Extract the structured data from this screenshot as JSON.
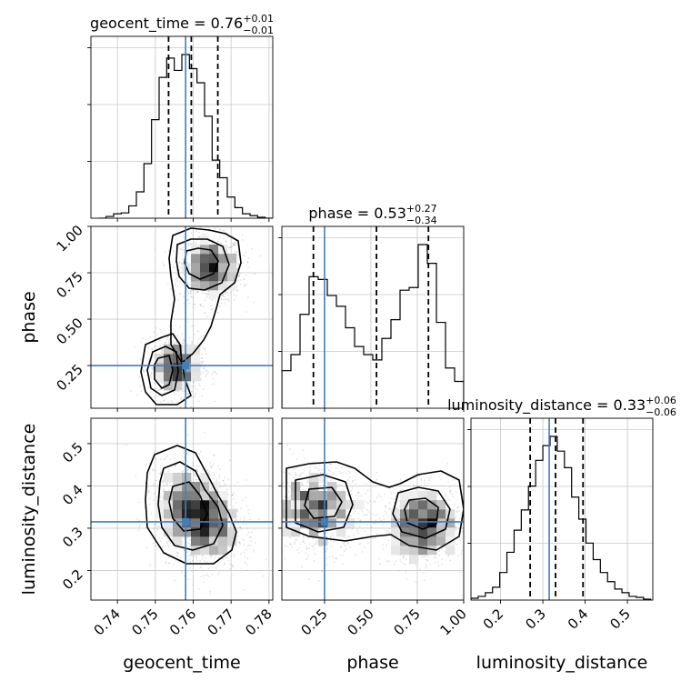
{
  "colors": {
    "truth": "#3f7fbf",
    "histogram": "#000000",
    "contour": "#000000",
    "grid": "#c8c8c8",
    "scatter": "#9a9a9a"
  },
  "chart_data": {
    "type": "corner",
    "parameters": [
      "geocent_time",
      "phase",
      "luminosity_distance"
    ],
    "truths": {
      "geocent_time": 0.758,
      "phase": 0.25,
      "luminosity_distance": 0.315
    },
    "ranges": {
      "geocent_time": [
        0.733,
        0.781
      ],
      "phase": [
        0.02,
        1.0
      ],
      "luminosity_distance": [
        0.13,
        0.56
      ]
    },
    "ticks": {
      "geocent_time": [
        "0.74",
        "0.75",
        "0.76",
        "0.77",
        "0.78"
      ],
      "phase": [
        "0.25",
        "0.50",
        "0.75",
        "1.00"
      ],
      "luminosity_distance": [
        "0.2",
        "0.3",
        "0.4",
        "0.5"
      ]
    },
    "row_ticks": {
      "phase": [
        "0.25",
        "0.50",
        "0.75",
        "1.00"
      ],
      "luminosity_distance": [
        "0.2",
        "0.3",
        "0.4",
        "0.5"
      ]
    },
    "axis_labels": {
      "x": [
        "geocent_time",
        "phase",
        "luminosity_distance"
      ],
      "y": [
        "phase",
        "luminosity_distance"
      ]
    },
    "grid": true,
    "marginals": [
      {
        "parameter": "geocent_time",
        "title_label": "geocent_time",
        "median": "0.76",
        "plus": "+0.01",
        "minus": "−0.01",
        "quantiles": [
          0.7535,
          0.7595,
          0.7665
        ],
        "hist_edges": [
          0.735,
          0.737,
          0.739,
          0.741,
          0.743,
          0.745,
          0.747,
          0.749,
          0.751,
          0.753,
          0.755,
          0.757,
          0.759,
          0.761,
          0.763,
          0.765,
          0.767,
          0.769,
          0.771,
          0.773,
          0.775,
          0.777,
          0.779,
          0.781
        ],
        "hist_counts": [
          0,
          2,
          5,
          6,
          14,
          30,
          62,
          112,
          160,
          182,
          168,
          186,
          170,
          154,
          116,
          66,
          46,
          24,
          12,
          5,
          3,
          1,
          0
        ]
      },
      {
        "parameter": "phase",
        "title_label": "phase",
        "median": "0.53",
        "plus": "+0.27",
        "minus": "−0.34",
        "quantiles": [
          0.19,
          0.53,
          0.81
        ],
        "hist_edges": [
          0.02,
          0.069,
          0.118,
          0.167,
          0.216,
          0.265,
          0.314,
          0.363,
          0.412,
          0.461,
          0.51,
          0.559,
          0.608,
          0.657,
          0.706,
          0.755,
          0.804,
          0.853,
          0.902,
          0.951,
          1.0
        ],
        "hist_counts": [
          28,
          40,
          70,
          98,
          96,
          84,
          76,
          60,
          46,
          40,
          36,
          52,
          66,
          88,
          90,
          122,
          108,
          64,
          30,
          20
        ]
      },
      {
        "parameter": "luminosity_distance",
        "title_label": "luminosity_distance",
        "median": "0.33",
        "plus": "+0.06",
        "minus": "−0.06",
        "quantiles": [
          0.27,
          0.33,
          0.395
        ],
        "hist_edges": [
          0.13,
          0.147,
          0.164,
          0.181,
          0.198,
          0.215,
          0.232,
          0.249,
          0.266,
          0.283,
          0.3,
          0.317,
          0.334,
          0.351,
          0.368,
          0.385,
          0.402,
          0.419,
          0.436,
          0.453,
          0.47,
          0.487,
          0.504,
          0.521,
          0.538,
          0.555
        ],
        "hist_counts": [
          2,
          4,
          8,
          14,
          30,
          52,
          76,
          98,
          124,
          152,
          168,
          178,
          162,
          144,
          112,
          88,
          62,
          44,
          30,
          20,
          12,
          8,
          4,
          3,
          1
        ]
      }
    ]
  }
}
